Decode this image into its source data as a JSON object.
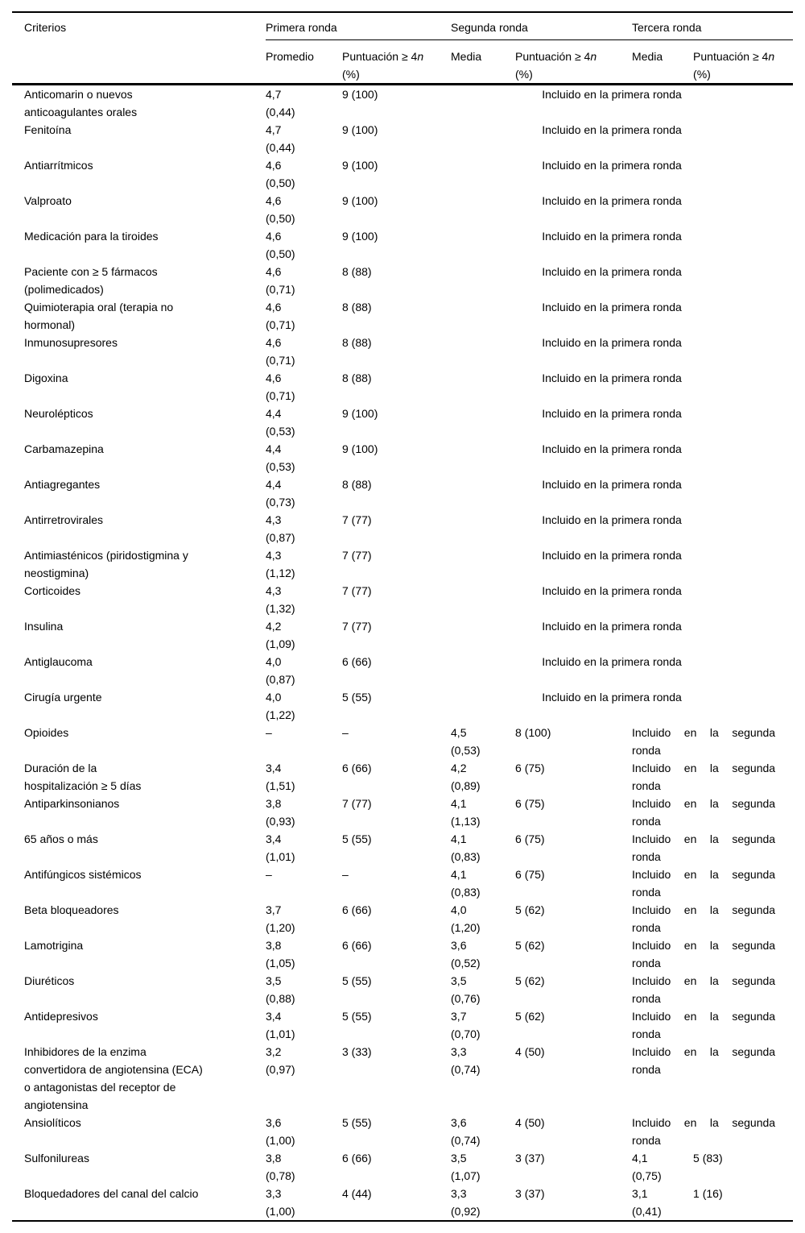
{
  "colors": {
    "text": "#000000",
    "background": "#ffffff"
  },
  "table": {
    "header": {
      "criterios": "Criterios",
      "groups": [
        {
          "label": "Primera ronda",
          "mean_label": "Promedio"
        },
        {
          "label": "Segunda ronda",
          "mean_label": "Media"
        },
        {
          "label": "Tercera ronda",
          "mean_label": "Media"
        }
      ],
      "score_label_prefix": "Puntuación ≥ 4",
      "score_label_n": "n",
      "score_label_pct": "(%)"
    },
    "notes": {
      "first_round": "Incluido en la primera ronda",
      "second_round": "Incluido en la segunda ronda"
    },
    "rows": [
      {
        "name": "Anticomarin o nuevos\nanticoagulantes orales",
        "r1_mean": "4,7",
        "r1_sd": "(0,44)",
        "r1_score": "9 (100)",
        "status": "first"
      },
      {
        "name": "Fenitoína",
        "r1_mean": "4,7",
        "r1_sd": "(0,44)",
        "r1_score": "9 (100)",
        "status": "first"
      },
      {
        "name": "Antiarrítmicos",
        "r1_mean": "4,6",
        "r1_sd": "(0,50)",
        "r1_score": "9 (100)",
        "status": "first"
      },
      {
        "name": "Valproato",
        "r1_mean": "4,6",
        "r1_sd": "(0,50)",
        "r1_score": "9 (100)",
        "status": "first"
      },
      {
        "name": "Medicación para la tiroides",
        "r1_mean": "4,6",
        "r1_sd": "(0,50)",
        "r1_score": "9 (100)",
        "status": "first"
      },
      {
        "name": "Paciente con ≥ 5 fármacos\n(polimedicados)",
        "r1_mean": "4,6",
        "r1_sd": "(0,71)",
        "r1_score": "8 (88)",
        "status": "first"
      },
      {
        "name": "Quimioterapia oral (terapia no\nhormonal)",
        "r1_mean": "4,6",
        "r1_sd": "(0,71)",
        "r1_score": "8 (88)",
        "status": "first"
      },
      {
        "name": "Inmunosupresores",
        "r1_mean": "4,6",
        "r1_sd": "(0,71)",
        "r1_score": "8 (88)",
        "status": "first"
      },
      {
        "name": "Digoxina",
        "r1_mean": "4,6",
        "r1_sd": "(0,71)",
        "r1_score": "8 (88)",
        "status": "first"
      },
      {
        "name": "Neurolépticos",
        "r1_mean": "4,4",
        "r1_sd": "(0,53)",
        "r1_score": "9 (100)",
        "status": "first"
      },
      {
        "name": "Carbamazepina",
        "r1_mean": "4,4",
        "r1_sd": "(0,53)",
        "r1_score": "9 (100)",
        "status": "first"
      },
      {
        "name": "Antiagregantes",
        "r1_mean": "4,4",
        "r1_sd": "(0,73)",
        "r1_score": "8 (88)",
        "status": "first"
      },
      {
        "name": "Antirretrovirales",
        "r1_mean": "4,3",
        "r1_sd": "(0,87)",
        "r1_score": "7 (77)",
        "status": "first"
      },
      {
        "name": "Antimiasténicos (piridostigmina y\nneostigmina)",
        "r1_mean": "4,3",
        "r1_sd": "(1,12)",
        "r1_score": "7 (77)",
        "status": "first"
      },
      {
        "name": "Corticoides",
        "r1_mean": "4,3",
        "r1_sd": "(1,32)",
        "r1_score": "7 (77)",
        "status": "first"
      },
      {
        "name": "Insulina",
        "r1_mean": "4,2",
        "r1_sd": "(1,09)",
        "r1_score": "7 (77)",
        "status": "first"
      },
      {
        "name": "Antiglaucoma",
        "r1_mean": "4,0",
        "r1_sd": "(0,87)",
        "r1_score": "6 (66)",
        "status": "first"
      },
      {
        "name": "Cirugía urgente",
        "r1_mean": "4,0",
        "r1_sd": "(1,22)",
        "r1_score": "5 (55)",
        "status": "first"
      },
      {
        "name": "Opioides",
        "r1_mean": "–",
        "r1_sd": "",
        "r1_score": "–",
        "r2_mean": "4,5",
        "r2_sd": "(0,53)",
        "r2_score": "8 (100)",
        "status": "second"
      },
      {
        "name": "Duración de la\nhospitalización ≥ 5 días",
        "r1_mean": "3,4",
        "r1_sd": "(1,51)",
        "r1_score": "6 (66)",
        "r2_mean": "4,2",
        "r2_sd": "(0,89)",
        "r2_score": "6 (75)",
        "status": "second"
      },
      {
        "name": "Antiparkinsonianos",
        "r1_mean": "3,8",
        "r1_sd": "(0,93)",
        "r1_score": "7 (77)",
        "r2_mean": "4,1",
        "r2_sd": "(1,13)",
        "r2_score": "6 (75)",
        "status": "second"
      },
      {
        "name": "65 años o más",
        "r1_mean": "3,4",
        "r1_sd": "(1,01)",
        "r1_score": "5 (55)",
        "r2_mean": "4,1",
        "r2_sd": "(0,83)",
        "r2_score": "6 (75)",
        "status": "second"
      },
      {
        "name": "Antifúngicos sistémicos",
        "r1_mean": "–",
        "r1_sd": "",
        "r1_score": "–",
        "r2_mean": "4,1",
        "r2_sd": "(0,83)",
        "r2_score": "6 (75)",
        "status": "second"
      },
      {
        "name": "Beta bloqueadores",
        "r1_mean": "3,7",
        "r1_sd": "(1,20)",
        "r1_score": "6 (66)",
        "r2_mean": "4,0",
        "r2_sd": "(1,20)",
        "r2_score": "5 (62)",
        "status": "second"
      },
      {
        "name": "Lamotrigina",
        "r1_mean": "3,8",
        "r1_sd": "(1,05)",
        "r1_score": "6 (66)",
        "r2_mean": "3,6",
        "r2_sd": "(0,52)",
        "r2_score": "5 (62)",
        "status": "second"
      },
      {
        "name": "Diuréticos",
        "r1_mean": "3,5",
        "r1_sd": "(0,88)",
        "r1_score": "5 (55)",
        "r2_mean": "3,5",
        "r2_sd": "(0,76)",
        "r2_score": "5 (62)",
        "status": "second"
      },
      {
        "name": "Antidepresivos",
        "r1_mean": "3,4",
        "r1_sd": "(1,01)",
        "r1_score": "5 (55)",
        "r2_mean": "3,7",
        "r2_sd": "(0,70)",
        "r2_score": "5 (62)",
        "status": "second"
      },
      {
        "name": "Inhibidores de la enzima\nconvertidora de angiotensina (ECA)\no antagonistas del receptor de\nangiotensina",
        "r1_mean": "3,2",
        "r1_sd": "(0,97)",
        "r1_score": "3 (33)",
        "r2_mean": "3,3",
        "r2_sd": "(0,74)",
        "r2_score": "4 (50)",
        "status": "second"
      },
      {
        "name": "Ansiolíticos",
        "r1_mean": "3,6",
        "r1_sd": "(1,00)",
        "r1_score": "5 (55)",
        "r2_mean": "3,6",
        "r2_sd": "(0,74)",
        "r2_score": "4 (50)",
        "status": "second"
      },
      {
        "name": "Sulfonilureas",
        "r1_mean": "3,8",
        "r1_sd": "(0,78)",
        "r1_score": "6 (66)",
        "r2_mean": "3,5",
        "r2_sd": "(1,07)",
        "r2_score": "3 (37)",
        "r3_mean": "4,1",
        "r3_sd": "(0,75)",
        "r3_score": "5 (83)",
        "status": "third"
      },
      {
        "name": "Bloquedadores del canal del calcio",
        "r1_mean": "3,3",
        "r1_sd": "(1,00)",
        "r1_score": "4 (44)",
        "r2_mean": "3,3",
        "r2_sd": "(0,92)",
        "r2_score": "3 (37)",
        "r3_mean": "3,1",
        "r3_sd": "(0,41)",
        "r3_score": "1 (16)",
        "status": "third"
      }
    ]
  }
}
